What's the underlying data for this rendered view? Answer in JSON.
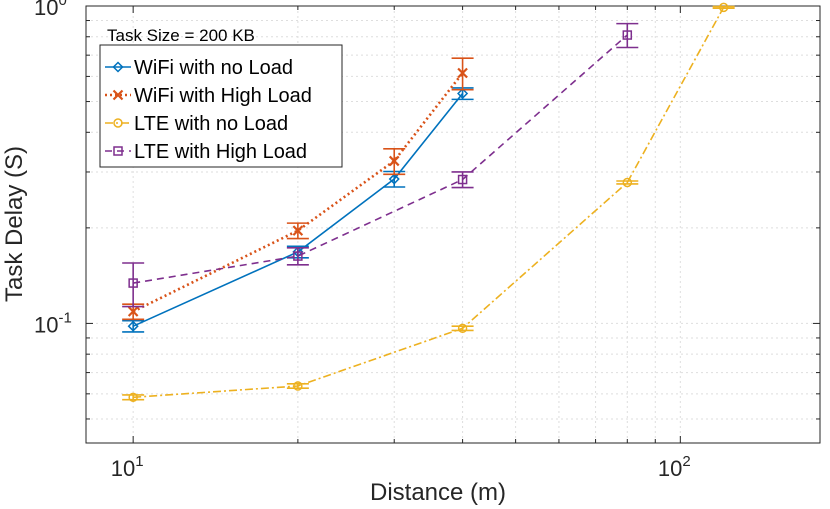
{
  "chart_data": {
    "type": "line",
    "title": "",
    "xlabel": "Distance (m)",
    "ylabel": "Task Delay (S)",
    "xscale": "log",
    "yscale": "log",
    "xlim": [
      8.2,
      180
    ],
    "ylim": [
      0.042,
      1.0
    ],
    "grid": true,
    "annotation": "Task Size = 200 KB",
    "legend_position": "top-left",
    "x_ticks": [
      {
        "base": "10",
        "exp": "1",
        "value": 10
      },
      {
        "base": "10",
        "exp": "2",
        "value": 100
      }
    ],
    "y_ticks": [
      {
        "base": "10",
        "exp": "-1",
        "value": 0.1
      },
      {
        "base": "10",
        "exp": "0",
        "value": 1.0
      }
    ],
    "series": [
      {
        "name": "WiFi with no Load",
        "color": "#0072bd",
        "dash": "solid",
        "marker": "diamond",
        "x": [
          10,
          20,
          30,
          40
        ],
        "y": [
          0.098,
          0.168,
          0.285,
          0.53
        ],
        "err": [
          0.004,
          0.007,
          0.016,
          0.022
        ]
      },
      {
        "name": "WiFi with High Load",
        "color": "#d95319",
        "dash": "dotted",
        "marker": "x",
        "x": [
          10,
          20,
          30,
          40
        ],
        "y": [
          0.109,
          0.196,
          0.325,
          0.615
        ],
        "err": [
          0.006,
          0.011,
          0.03,
          0.07
        ]
      },
      {
        "name": "LTE with no Load",
        "color": "#edb120",
        "dash": "dashdot",
        "marker": "circle",
        "x": [
          10,
          20,
          40,
          80,
          120
        ],
        "y": [
          0.0585,
          0.0635,
          0.0965,
          0.278,
          0.99
        ],
        "err": [
          0.001,
          0.001,
          0.0015,
          0.003,
          0.006
        ]
      },
      {
        "name": "LTE with High Load",
        "color": "#7e2f8e",
        "dash": "dashed",
        "marker": "square",
        "x": [
          10,
          20,
          40,
          80
        ],
        "y": [
          0.134,
          0.163,
          0.284,
          0.81
        ],
        "err": [
          0.021,
          0.01,
          0.016,
          0.07
        ]
      }
    ]
  }
}
